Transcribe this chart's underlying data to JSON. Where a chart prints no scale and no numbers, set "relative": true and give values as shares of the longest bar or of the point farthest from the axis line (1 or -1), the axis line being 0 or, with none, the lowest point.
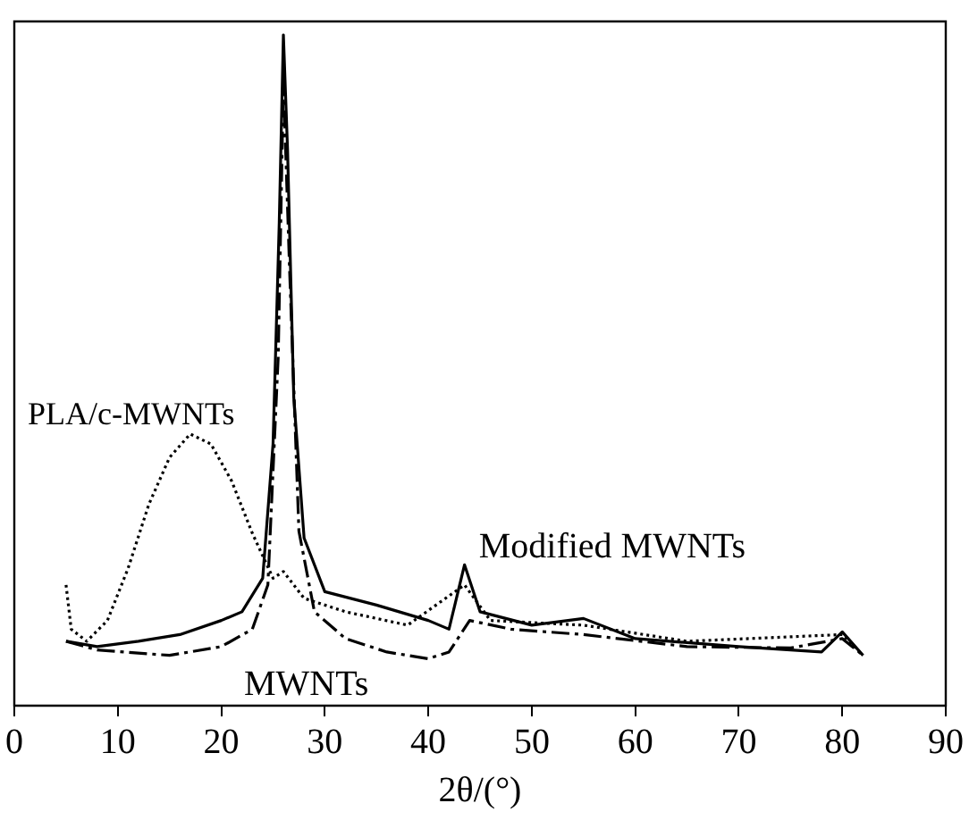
{
  "chart_data": {
    "type": "line",
    "xlabel": "2θ/(°)",
    "xlim": [
      0,
      90
    ],
    "xticks": [
      0,
      10,
      20,
      30,
      40,
      50,
      60,
      70,
      80,
      90
    ],
    "relative": true,
    "legend": false,
    "grid": false,
    "marker": "none",
    "series": [
      {
        "name": "Modified MWNTs",
        "color": "#000000",
        "line_style": "solid",
        "x": [
          5,
          8,
          12,
          16,
          20,
          22,
          24,
          25,
          25.6,
          26,
          26.4,
          27,
          28,
          30,
          35,
          40,
          42,
          43.5,
          45,
          50,
          55,
          60,
          70,
          78,
          80,
          82
        ],
        "values": [
          0.096,
          0.088,
          0.096,
          0.106,
          0.127,
          0.14,
          0.19,
          0.39,
          0.72,
          1,
          0.83,
          0.46,
          0.25,
          0.17,
          0.15,
          0.127,
          0.114,
          0.21,
          0.14,
          0.12,
          0.13,
          0.1,
          0.088,
          0.08,
          0.11,
          0.075
        ]
      },
      {
        "name": "PLA/c-MWNTs",
        "color": "#000000",
        "line_style": "dotted",
        "x": [
          5,
          5.5,
          7,
          9,
          11,
          13,
          15,
          17,
          19,
          21,
          23,
          25,
          26,
          28,
          32,
          38,
          43.5,
          46,
          55,
          65,
          80,
          82
        ],
        "values": [
          0.18,
          0.114,
          0.096,
          0.127,
          0.205,
          0.3,
          0.37,
          0.405,
          0.39,
          0.335,
          0.257,
          0.19,
          0.2,
          0.16,
          0.14,
          0.12,
          0.18,
          0.127,
          0.12,
          0.096,
          0.106,
          0.075
        ]
      },
      {
        "name": "MWNTs",
        "color": "#000000",
        "line_style": "dashed",
        "x": [
          5,
          8,
          15,
          20,
          23,
          24.5,
          25.5,
          26,
          26.6,
          27.5,
          29,
          32,
          36,
          40,
          42,
          44,
          48,
          55,
          65,
          75,
          80,
          82
        ],
        "values": [
          0.096,
          0.083,
          0.075,
          0.088,
          0.114,
          0.18,
          0.52,
          0.93,
          0.65,
          0.26,
          0.14,
          0.1,
          0.08,
          0.07,
          0.08,
          0.127,
          0.114,
          0.106,
          0.088,
          0.086,
          0.1,
          0.075
        ]
      }
    ]
  }
}
